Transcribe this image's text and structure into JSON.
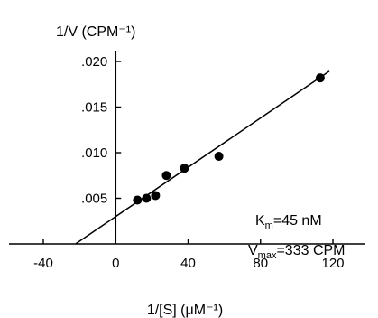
{
  "chart_data": {
    "type": "scatter",
    "ylabel": "1/V (CPM⁻¹)",
    "xlabel": "1/[S] (μM⁻¹)",
    "xlim": [
      -50,
      130
    ],
    "ylim": [
      0,
      0.0215
    ],
    "x_ticks": [
      -40,
      0,
      40,
      80,
      120
    ],
    "x_tick_labels": [
      "-40",
      "0",
      "40",
      "80",
      "120"
    ],
    "y_ticks": [
      0.005,
      0.01,
      0.015,
      0.02
    ],
    "y_tick_labels": [
      ".005",
      ".010",
      ".015",
      ".020"
    ],
    "series": [
      {
        "points": [
          {
            "x": 12,
            "y": 0.0048
          },
          {
            "x": 17,
            "y": 0.005
          },
          {
            "x": 22,
            "y": 0.0053
          },
          {
            "x": 28,
            "y": 0.0075
          },
          {
            "x": 38,
            "y": 0.0083
          },
          {
            "x": 57,
            "y": 0.0096
          },
          {
            "x": 113,
            "y": 0.0182
          }
        ]
      }
    ],
    "fit_line": {
      "x_start": -22,
      "x_end": 118,
      "intercept": 0.003,
      "slope": 0.000135
    },
    "annotations": [
      {
        "main": "K",
        "sub": "m",
        "rest": "=45 nM"
      },
      {
        "main": "V",
        "sub": "max",
        "rest": "=333 CPM"
      }
    ],
    "grid": false
  }
}
